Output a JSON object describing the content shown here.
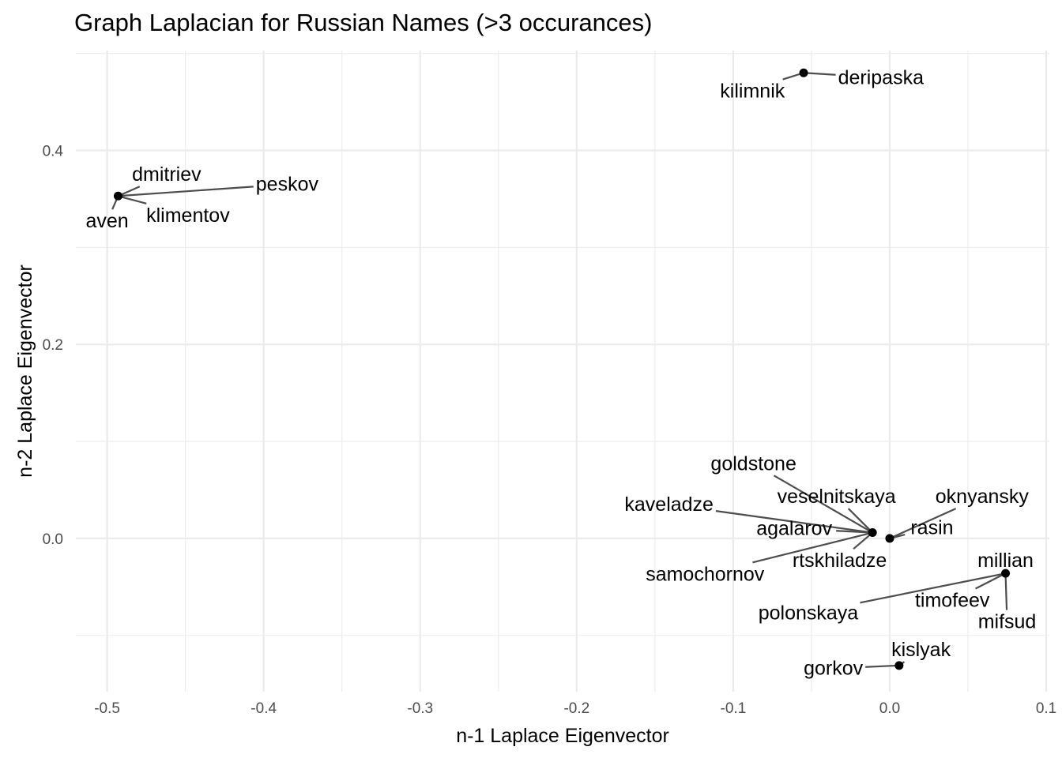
{
  "chart_data": {
    "type": "scatter",
    "title": "Graph Laplacian for Russian Names (>3 occurances)",
    "xlabel": "n-1 Laplace Eigenvector",
    "ylabel": "n-2 Laplace Eigenvector",
    "xlim": [
      -0.52,
      0.102
    ],
    "ylim": [
      -0.158,
      0.503
    ],
    "x_ticks": [
      -0.5,
      -0.4,
      -0.3,
      -0.2,
      -0.1,
      0.0,
      0.1
    ],
    "x_tick_labels": [
      "-0.5",
      "-0.4",
      "-0.3",
      "-0.2",
      "-0.1",
      "0.0",
      "0.1"
    ],
    "y_ticks": [
      0.0,
      0.2,
      0.4
    ],
    "y_tick_labels": [
      "0.0",
      "0.2",
      "0.4"
    ],
    "grid": true,
    "points": [
      {
        "x": -0.055,
        "y": 0.48
      },
      {
        "x": -0.493,
        "y": 0.353
      },
      {
        "x": -0.011,
        "y": 0.006
      },
      {
        "x": 0.0,
        "y": 0.0
      },
      {
        "x": 0.074,
        "y": -0.036
      },
      {
        "x": 0.006,
        "y": -0.131
      }
    ],
    "labels": [
      {
        "text": "deripaska",
        "x": -0.055,
        "y": 0.48,
        "lx": -0.033,
        "ly": 0.475,
        "anchor": "start"
      },
      {
        "text": "kilimnik",
        "x": -0.055,
        "y": 0.48,
        "lx": -0.067,
        "ly": 0.461,
        "anchor": "end"
      },
      {
        "text": "dmitriev",
        "x": -0.493,
        "y": 0.353,
        "lx": -0.462,
        "ly": 0.375,
        "anchor": "middle"
      },
      {
        "text": "peskov",
        "x": -0.493,
        "y": 0.353,
        "lx": -0.405,
        "ly": 0.365,
        "anchor": "start"
      },
      {
        "text": "klimentov",
        "x": -0.493,
        "y": 0.353,
        "lx": -0.475,
        "ly": 0.333,
        "anchor": "start"
      },
      {
        "text": "aven",
        "x": -0.493,
        "y": 0.353,
        "lx": -0.5,
        "ly": 0.327,
        "anchor": "middle"
      },
      {
        "text": "goldstone",
        "x": -0.011,
        "y": 0.006,
        "lx": -0.087,
        "ly": 0.077,
        "anchor": "middle"
      },
      {
        "text": "veselnitskaya",
        "x": -0.011,
        "y": 0.006,
        "lx": -0.034,
        "ly": 0.043,
        "anchor": "middle"
      },
      {
        "text": "oknyansky",
        "x": 0.0,
        "y": 0.0,
        "lx": 0.059,
        "ly": 0.043,
        "anchor": "middle"
      },
      {
        "text": "kaveladze",
        "x": -0.011,
        "y": 0.006,
        "lx": -0.141,
        "ly": 0.035,
        "anchor": "middle"
      },
      {
        "text": "agalarov",
        "x": -0.011,
        "y": 0.006,
        "lx": -0.061,
        "ly": 0.01,
        "anchor": "middle"
      },
      {
        "text": "rasin",
        "x": 0.0,
        "y": 0.0,
        "lx": 0.027,
        "ly": 0.011,
        "anchor": "middle"
      },
      {
        "text": "rtskhiladze",
        "x": -0.011,
        "y": 0.006,
        "lx": -0.032,
        "ly": -0.023,
        "anchor": "middle"
      },
      {
        "text": "samochornov",
        "x": -0.011,
        "y": 0.006,
        "lx": -0.118,
        "ly": -0.037,
        "anchor": "middle"
      },
      {
        "text": "millian",
        "x": 0.074,
        "y": -0.036,
        "lx": 0.074,
        "ly": -0.023,
        "anchor": "middle"
      },
      {
        "text": "timofeev",
        "x": 0.074,
        "y": -0.036,
        "lx": 0.04,
        "ly": -0.064,
        "anchor": "middle"
      },
      {
        "text": "polonskaya",
        "x": 0.074,
        "y": -0.036,
        "lx": -0.052,
        "ly": -0.077,
        "anchor": "middle"
      },
      {
        "text": "mifsud",
        "x": 0.074,
        "y": -0.036,
        "lx": 0.075,
        "ly": -0.086,
        "anchor": "middle"
      },
      {
        "text": "kislyak",
        "x": 0.006,
        "y": -0.131,
        "lx": 0.02,
        "ly": -0.115,
        "anchor": "middle"
      },
      {
        "text": "gorkov",
        "x": 0.006,
        "y": -0.131,
        "lx": -0.036,
        "ly": -0.134,
        "anchor": "middle"
      }
    ]
  }
}
